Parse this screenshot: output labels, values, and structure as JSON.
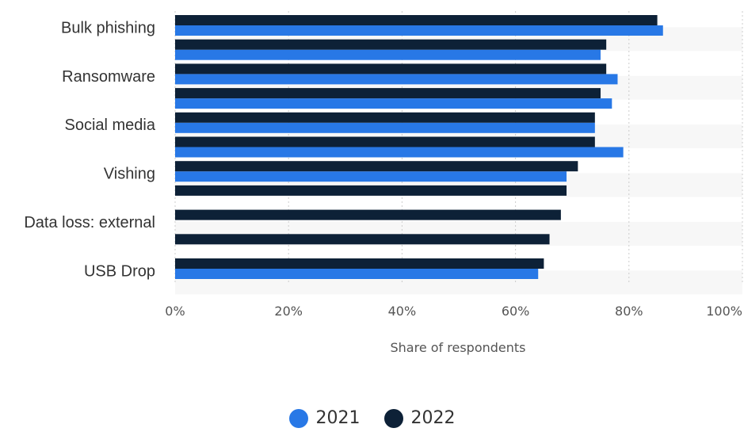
{
  "chart_data": {
    "type": "bar",
    "orientation": "horizontal",
    "title": "",
    "xlabel": "Share of respondents",
    "ylabel": "",
    "xlim": [
      0,
      100
    ],
    "x_ticks": [
      "0%",
      "20%",
      "40%",
      "60%",
      "80%",
      "100%"
    ],
    "grid": true,
    "legend_position": "bottom",
    "category_labels": [
      "Bulk phishing",
      "",
      "Ransomware",
      "",
      "Social media",
      "",
      "Vishing",
      "",
      "Data loss: external",
      "",
      "USB Drop"
    ],
    "series": [
      {
        "name": "2021",
        "color": "#2878e6",
        "values": [
          86,
          75,
          78,
          77,
          74,
          79,
          69,
          null,
          null,
          null,
          64
        ]
      },
      {
        "name": "2022",
        "color": "#0d2137",
        "values": [
          85,
          76,
          76,
          75,
          74,
          74,
          71,
          69,
          68,
          66,
          65
        ]
      }
    ]
  },
  "legend": {
    "items": [
      {
        "label": "2021",
        "color": "#2878e6"
      },
      {
        "label": "2022",
        "color": "#0d2137"
      }
    ]
  }
}
